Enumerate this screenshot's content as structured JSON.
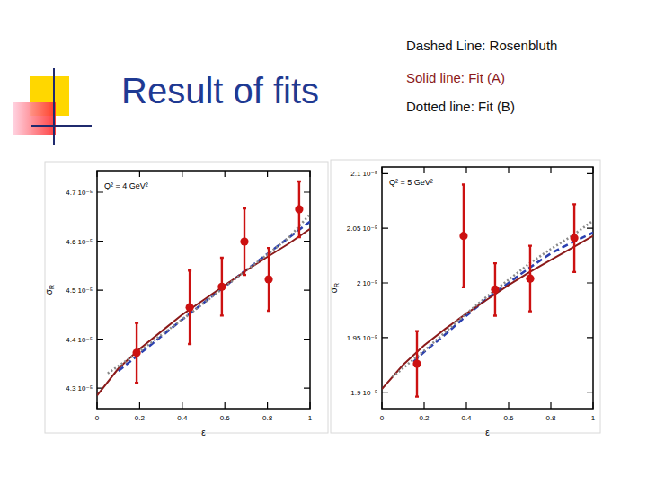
{
  "slide": {
    "title": "Result of fits",
    "legend_lines": [
      "Dashed Line: Rosenbluth",
      "Solid line: Fit (A)",
      "Dotted line: Fit (B)"
    ]
  },
  "chart_data": [
    {
      "type": "scatter",
      "annotation": "Q² = 4 GeV²",
      "x_label": "ε",
      "y_label": "σR",
      "xlim": [
        0,
        1
      ],
      "xticks": [
        0,
        0.2,
        0.4,
        0.6,
        0.8,
        1
      ],
      "ylim": [
        4.258e-05,
        4.744e-05
      ],
      "yticks": [
        {
          "value": 4.3e-05,
          "label": "4.3 10⁻⁵"
        },
        {
          "value": 4.4e-05,
          "label": "4.4 10⁻⁵"
        },
        {
          "value": 4.5e-05,
          "label": "4.5 10⁻⁵"
        },
        {
          "value": 4.6e-05,
          "label": "4.6 10⁻⁵"
        },
        {
          "value": 4.7e-05,
          "label": "4.7 10⁻⁵"
        }
      ],
      "grid": false,
      "series": [
        {
          "type": "line",
          "line_style": "dashed",
          "color": "#2a3fb0",
          "x": [
            0.1,
            0.2,
            0.3,
            0.4,
            0.5,
            0.6,
            0.7,
            0.8,
            0.9,
            1
          ],
          "values": [
            4.335e-05,
            4.37e-05,
            4.405e-05,
            4.44e-05,
            4.474e-05,
            4.508e-05,
            4.541e-05,
            4.574e-05,
            4.607e-05,
            4.64e-05
          ]
        },
        {
          "type": "line",
          "line_style": "solid",
          "color": "#8b1a1a",
          "x": [
            0,
            0.1,
            0.2,
            0.3,
            0.4,
            0.5,
            0.6,
            0.7,
            0.8,
            0.9,
            1
          ],
          "values": [
            4.285e-05,
            4.34e-05,
            4.38e-05,
            4.415e-05,
            4.45e-05,
            4.48e-05,
            4.51e-05,
            4.54e-05,
            4.568e-05,
            4.595e-05,
            4.625e-05
          ]
        },
        {
          "type": "line",
          "line_style": "dotted",
          "color": "#8a8a8a",
          "x": [
            0.05,
            0.1,
            0.2,
            0.3,
            0.4,
            0.5,
            0.6,
            0.7,
            0.8,
            0.9,
            1
          ],
          "values": [
            4.33e-05,
            4.345e-05,
            4.375e-05,
            4.408e-05,
            4.44e-05,
            4.473e-05,
            4.507e-05,
            4.54e-05,
            4.573e-05,
            4.607e-05,
            4.655e-05
          ]
        },
        {
          "type": "scatter",
          "marker": "circle",
          "color": "#cc1111",
          "x": [
            0.186,
            0.435,
            0.586,
            0.692,
            0.806,
            0.949
          ],
          "values": [
            4.372e-05,
            4.465e-05,
            4.507e-05,
            4.599e-05,
            4.522e-05,
            4.665e-05
          ],
          "errors": [
            6.1e-07,
            7.5e-07,
            5.9e-07,
            6.8e-07,
            6.4e-07,
            5.7e-07
          ]
        }
      ]
    },
    {
      "type": "scatter",
      "annotation": "Q² = 5 GeV²",
      "x_label": "ε",
      "y_label": "σR",
      "xlim": [
        0,
        1
      ],
      "xticks": [
        0,
        0.2,
        0.4,
        0.6,
        0.8,
        1
      ],
      "ylim": [
        1.885e-05,
        2.106e-05
      ],
      "yticks": [
        {
          "value": 1.9e-05,
          "label": "1.9 10⁻⁵"
        },
        {
          "value": 1.95e-05,
          "label": "1.95 10⁻⁵"
        },
        {
          "value": 2e-05,
          "label": "2 10⁻⁵"
        },
        {
          "value": 2.05e-05,
          "label": "2.05 10⁻⁵"
        },
        {
          "value": 2.1e-05,
          "label": "2.1 10⁻⁵"
        }
      ],
      "grid": false,
      "series": [
        {
          "type": "line",
          "line_style": "dashed",
          "color": "#2a3fb0",
          "x": [
            0.15,
            0.2,
            0.3,
            0.4,
            0.5,
            0.6,
            0.7,
            0.8,
            0.9,
            1
          ],
          "values": [
            1.928e-05,
            1.937e-05,
            1.953e-05,
            1.97e-05,
            1.986e-05,
            2e-05,
            2.014e-05,
            2.027e-05,
            2.037e-05,
            2.046e-05
          ]
        },
        {
          "type": "line",
          "line_style": "solid",
          "color": "#8b1a1a",
          "x": [
            0,
            0.1,
            0.2,
            0.3,
            0.4,
            0.5,
            0.6,
            0.7,
            0.8,
            0.9,
            1
          ],
          "values": [
            1.903e-05,
            1.925e-05,
            1.943e-05,
            1.958e-05,
            1.972e-05,
            1.985e-05,
            1.998e-05,
            2.01e-05,
            2.021e-05,
            2.032e-05,
            2.043e-05
          ]
        },
        {
          "type": "line",
          "line_style": "dotted",
          "color": "#8a8a8a",
          "x": [
            0.05,
            0.1,
            0.2,
            0.3,
            0.4,
            0.5,
            0.6,
            0.7,
            0.8,
            0.9,
            1
          ],
          "values": [
            1.914e-05,
            1.922e-05,
            1.938e-05,
            1.955e-05,
            1.972e-05,
            1.988e-05,
            2.003e-05,
            2.018e-05,
            2.031e-05,
            2.043e-05,
            2.057e-05
          ]
        },
        {
          "type": "scatter",
          "marker": "circle",
          "color": "#cc1111",
          "x": [
            0.166,
            0.387,
            0.536,
            0.702,
            0.911
          ],
          "values": [
            1.926e-05,
            2.043e-05,
            1.994e-05,
            2.004e-05,
            2.041e-05
          ],
          "errors": [
            3e-07,
            4.7e-07,
            2.4e-07,
            3e-07,
            3.1e-07
          ]
        }
      ]
    }
  ]
}
